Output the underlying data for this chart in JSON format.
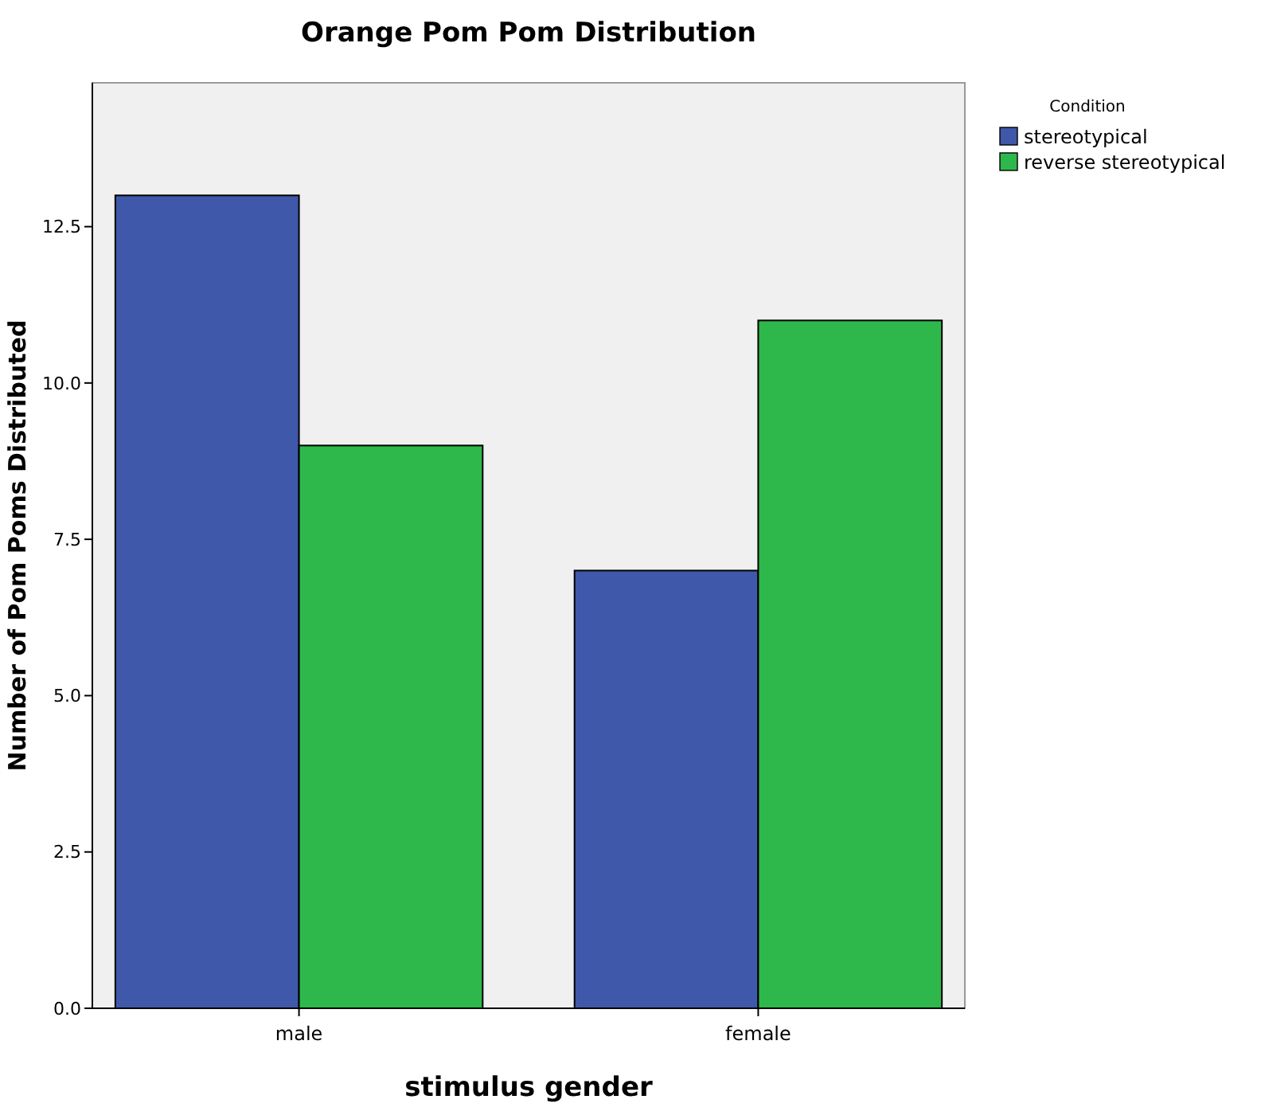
{
  "chart_data": {
    "type": "bar",
    "title": "Orange Pom Pom Distribution",
    "xlabel": "stimulus gender",
    "ylabel": "Number of Pom Poms Distributed",
    "legend_title": "Condition",
    "legend": "right",
    "categories": [
      "male",
      "female"
    ],
    "series": [
      {
        "name": "stereotypical",
        "color": "#3f58aa",
        "values": [
          13,
          7
        ]
      },
      {
        "name": "reverse stereotypical",
        "color": "#2eb84b",
        "values": [
          9,
          11
        ]
      }
    ],
    "ylim": [
      0,
      14.8
    ],
    "yticks": [
      {
        "value": 0,
        "label": "0.0"
      },
      {
        "value": 2.5,
        "label": "2.5"
      },
      {
        "value": 5,
        "label": "5.0"
      },
      {
        "value": 7.5,
        "label": "7.5"
      },
      {
        "value": 10,
        "label": "10.0"
      },
      {
        "value": 12.5,
        "label": "12.5"
      }
    ]
  }
}
